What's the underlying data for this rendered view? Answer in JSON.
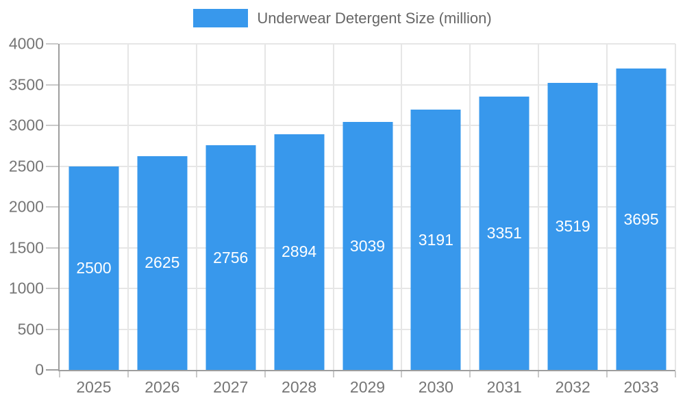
{
  "legend": {
    "label": "Underwear Detergent Size (million)"
  },
  "colors": {
    "bar": "#3898EC",
    "bar_label": "#FFFFFF",
    "grid": "#E6E6E6",
    "axis": "#9E9E9E",
    "tick": "#C9C9C9",
    "tick_label": "#757575",
    "legend_text": "#666666",
    "background": "#FFFFFF"
  },
  "chart_data": {
    "type": "bar",
    "title": "",
    "xlabel": "",
    "ylabel": "",
    "categories": [
      "2025",
      "2026",
      "2027",
      "2028",
      "2029",
      "2030",
      "2031",
      "2032",
      "2033"
    ],
    "series": [
      {
        "name": "Underwear Detergent Size (million)",
        "values": [
          2500,
          2625,
          2756,
          2894,
          3039,
          3191,
          3351,
          3519,
          3695
        ]
      }
    ],
    "ylim": [
      0,
      4000
    ],
    "yticks": [
      0,
      500,
      1000,
      1500,
      2000,
      2500,
      3000,
      3500,
      4000
    ],
    "grid": true,
    "legend_position": "top",
    "value_labels": "inside-center"
  }
}
